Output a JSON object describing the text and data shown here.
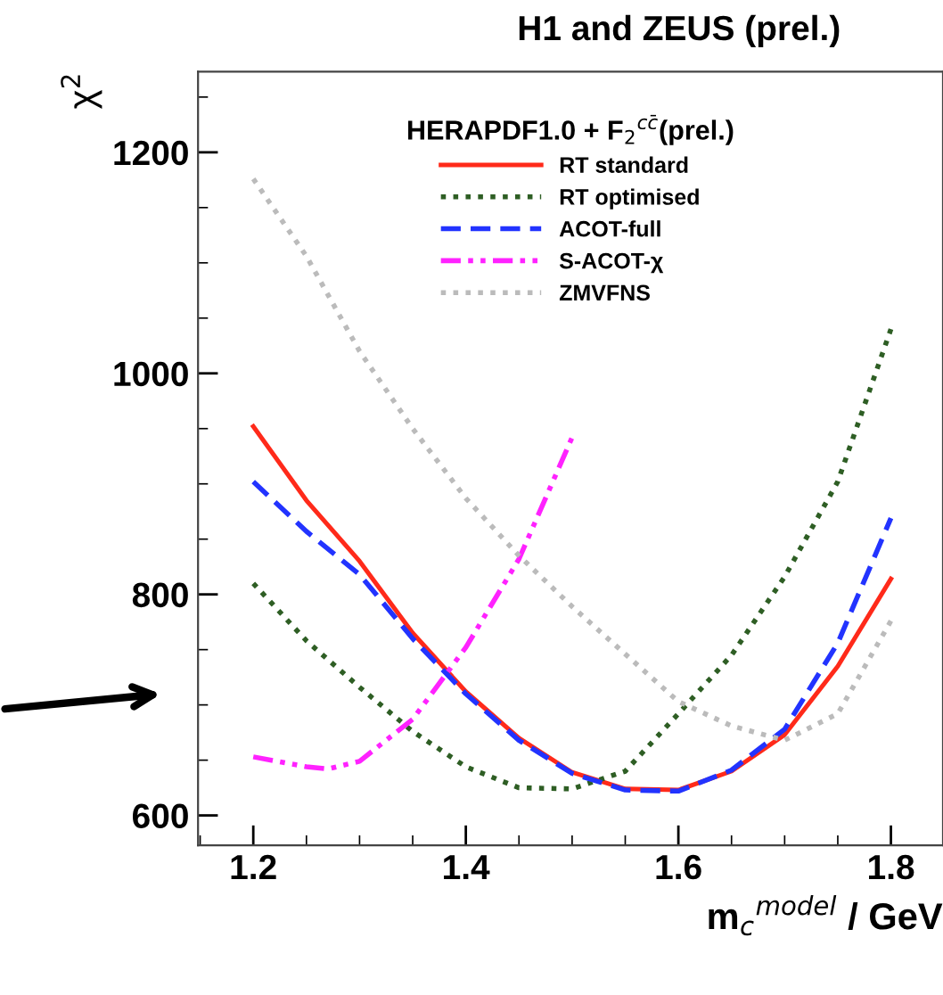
{
  "chart_data": {
    "type": "line",
    "title": "H1 and ZEUS (prel.)",
    "xlabel": "m$_{c}$$^{model}$ / GeV",
    "ylabel": "χ$^{2}$",
    "legend_title": "HERAPDF1.0 + F$_{2}$$^{cc̄}$(prel.)",
    "x": [
      1.2,
      1.25,
      1.3,
      1.35,
      1.4,
      1.45,
      1.5,
      1.55,
      1.6,
      1.65,
      1.7,
      1.75,
      1.8
    ],
    "series": [
      {
        "name": "RT standard",
        "color": "#ff2a1a",
        "line_style": "solid",
        "values": [
          952,
          885,
          830,
          765,
          712,
          670,
          639,
          624,
          623,
          640,
          673,
          735,
          814
        ]
      },
      {
        "name": "RT optimised",
        "color": "#2e5e24",
        "line_style": "dotted",
        "values": [
          810,
          758,
          716,
          676,
          644,
          625,
          624,
          640,
          692,
          745,
          816,
          902,
          1040
        ]
      },
      {
        "name": "ACOT-full",
        "color": "#2233ff",
        "line_style": "dashed",
        "values": [
          902,
          857,
          818,
          760,
          710,
          668,
          638,
          623,
          622,
          641,
          678,
          756,
          869
        ]
      },
      {
        "name": "S-ACOT-χ",
        "color": "#ff22ff",
        "line_style": "dashdot",
        "x": [
          1.2,
          1.25,
          1.27,
          1.3,
          1.35,
          1.4,
          1.45,
          1.5
        ],
        "values": [
          653,
          644,
          642,
          649,
          687,
          752,
          832,
          942
        ]
      },
      {
        "name": "ZMVFNS",
        "color": "#bbbbbb",
        "line_style": "dotted",
        "values": [
          1176,
          1106,
          1020,
          950,
          887,
          835,
          789,
          746,
          703,
          681,
          668,
          692,
          776
        ]
      }
    ],
    "xlim": [
      1.148,
      1.849
    ],
    "ylim": [
      573,
      1273
    ],
    "xticks": [
      1.2,
      1.4,
      1.6,
      1.8
    ],
    "yticks": [
      600,
      800,
      1000,
      1200
    ],
    "grid": false,
    "legend": "top"
  }
}
